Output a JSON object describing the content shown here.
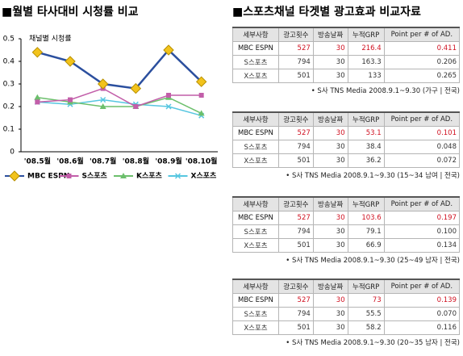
{
  "chart_data": {
    "type": "line",
    "title": "■월별 타사대비 시청률 비교",
    "y_label": "채널별 시청률",
    "categories": [
      "'08.5월",
      "'08.6월",
      "'08.7월",
      "'08.8월",
      "'08.9월",
      "'08.10월"
    ],
    "series": [
      {
        "name": "MBC ESPN",
        "color": "#2b4f9e",
        "marker_color": "#f2c31c",
        "marker": "diamond",
        "values": [
          0.44,
          0.4,
          0.3,
          0.28,
          0.45,
          0.31
        ]
      },
      {
        "name": "S스포츠",
        "color": "#c25ea9",
        "marker": "square",
        "values": [
          0.22,
          0.23,
          0.28,
          0.2,
          0.25,
          0.25
        ]
      },
      {
        "name": "K스포츠",
        "color": "#6cbf6c",
        "marker": "triangle",
        "values": [
          0.24,
          0.22,
          0.2,
          0.2,
          0.24,
          0.17
        ]
      },
      {
        "name": "X스포츠",
        "color": "#56c6e0",
        "marker": "x",
        "values": [
          0.22,
          0.21,
          0.23,
          0.21,
          0.2,
          0.16
        ]
      }
    ],
    "ylim": [
      0,
      0.5
    ],
    "yticks": [
      0,
      0.1,
      0.2,
      0.3,
      0.4,
      0.5
    ],
    "grid": false,
    "legend": "bottom"
  },
  "right_title": "■스포츠채널 타겟별 광고효과 비교자료",
  "tables": [
    {
      "header": [
        "세부사항",
        "광고횟수",
        "방송날짜",
        "누적GRP",
        "Point per # of AD."
      ],
      "rows": [
        [
          "MBC ESPN",
          "527",
          "30",
          "216.4",
          "0.411"
        ],
        [
          "S스포츠",
          "794",
          "30",
          "163.3",
          "0.206"
        ],
        [
          "X스포츠",
          "501",
          "30",
          "133",
          "0.265"
        ]
      ],
      "note": "• S사 TNS Media 2008.9.1~9.30 (가구 | 전국)"
    },
    {
      "header": [
        "세부사항",
        "광고횟수",
        "방송날짜",
        "누적GRP",
        "Point per # of AD."
      ],
      "rows": [
        [
          "MBC ESPN",
          "527",
          "30",
          "53.1",
          "0.101"
        ],
        [
          "S스포츠",
          "794",
          "30",
          "38.4",
          "0.048"
        ],
        [
          "X스포츠",
          "501",
          "30",
          "36.2",
          "0.072"
        ]
      ],
      "note": "• S사 TNS Media 2008.9.1~9.30 (15~34 남여 | 전국)"
    },
    {
      "header": [
        "세부사항",
        "광고횟수",
        "방송날짜",
        "누적GRP",
        "Point per # of AD."
      ],
      "rows": [
        [
          "MBC ESPN",
          "527",
          "30",
          "103.6",
          "0.197"
        ],
        [
          "S스포츠",
          "794",
          "30",
          "79.1",
          "0.100"
        ],
        [
          "X스포츠",
          "501",
          "30",
          "66.9",
          "0.134"
        ]
      ],
      "note": "• S사 TNS Media 2008.9.1~9.30 (25~49 남자 | 전국)"
    },
    {
      "header": [
        "세부사항",
        "광고횟수",
        "방송날짜",
        "누적GRP",
        "Point per # of AD."
      ],
      "rows": [
        [
          "MBC ESPN",
          "527",
          "30",
          "73",
          "0.139"
        ],
        [
          "S스포츠",
          "794",
          "30",
          "55.5",
          "0.070"
        ],
        [
          "X스포츠",
          "501",
          "30",
          "58.2",
          "0.116"
        ]
      ],
      "note": "• S사 TNS Media 2008.9.1~9.30 (20~35 남자 | 전국)"
    }
  ]
}
